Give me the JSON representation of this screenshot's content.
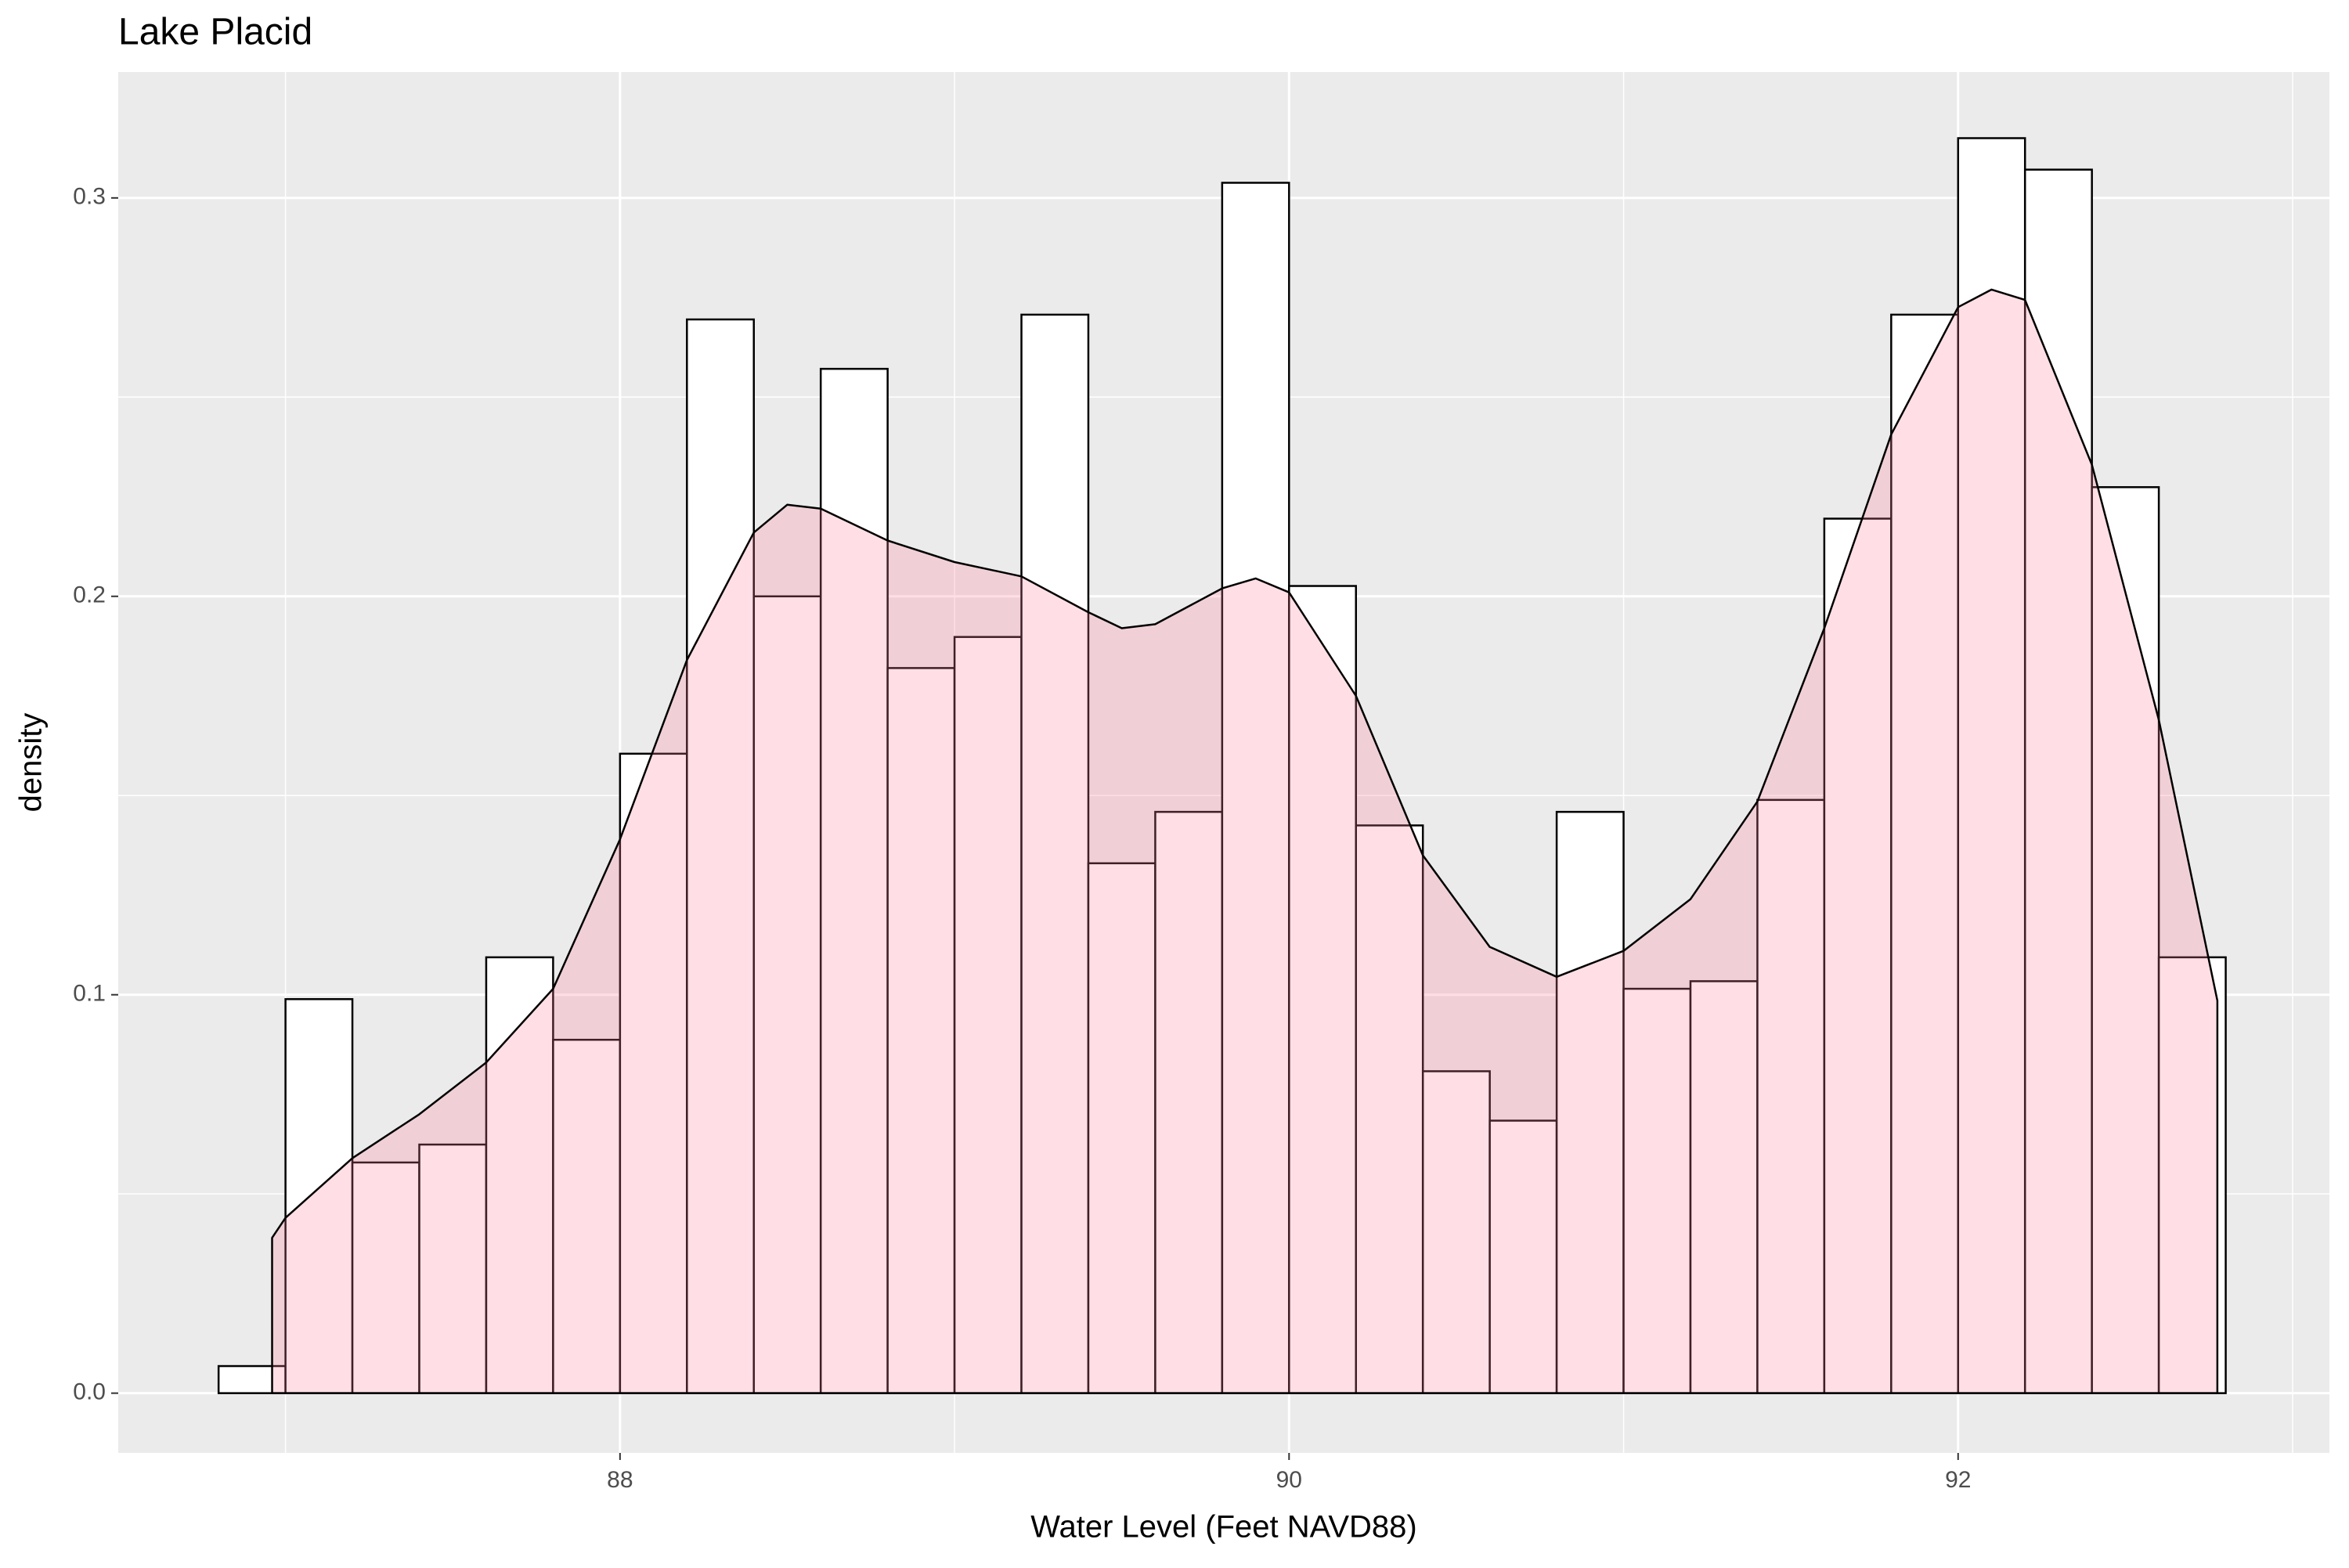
{
  "chart_data": {
    "type": "histogram",
    "title": "Lake Placid",
    "x_label": "Water Level (Feet NAVD88)",
    "y_label": "density",
    "bins": [
      86.8,
      87.0,
      87.2,
      87.4,
      87.6,
      87.8,
      88.0,
      88.2,
      88.4,
      88.6,
      88.8,
      89.0,
      89.2,
      89.4,
      89.6,
      89.8,
      90.0,
      90.2,
      90.4,
      90.6,
      90.8,
      91.0,
      91.2,
      91.4,
      91.6,
      91.8,
      92.0,
      92.2,
      92.4,
      92.6,
      92.8
    ],
    "values": [
      0.0068,
      0.0989,
      0.0579,
      0.0624,
      0.1094,
      0.0887,
      0.1605,
      0.2695,
      0.2,
      0.2571,
      0.182,
      0.1898,
      0.2707,
      0.133,
      0.1459,
      0.3038,
      0.2026,
      0.1425,
      0.0808,
      0.0684,
      0.1459,
      0.1015,
      0.1034,
      0.1489,
      0.2195,
      0.2707,
      0.315,
      0.3071,
      0.2274,
      0.1094
    ],
    "color": "#ffffff",
    "edge_color": "#000000",
    "density": {
      "x": [
        86.96,
        87.0,
        87.2,
        87.4,
        87.6,
        87.8,
        88.0,
        88.2,
        88.4,
        88.5,
        88.6,
        88.8,
        89.0,
        89.2,
        89.4,
        89.5,
        89.6,
        89.8,
        89.9,
        90.0,
        90.2,
        90.4,
        90.6,
        90.8,
        91.0,
        91.2,
        91.4,
        91.6,
        91.8,
        92.0,
        92.1,
        92.2,
        92.4,
        92.6,
        92.775
      ],
      "y": [
        0.039,
        0.044,
        0.059,
        0.07,
        0.083,
        0.1015,
        0.139,
        0.184,
        0.216,
        0.223,
        0.222,
        0.214,
        0.2086,
        0.205,
        0.196,
        0.192,
        0.193,
        0.202,
        0.2045,
        0.201,
        0.175,
        0.135,
        0.112,
        0.1045,
        0.111,
        0.124,
        0.1485,
        0.192,
        0.2406,
        0.2726,
        0.277,
        0.2744,
        0.233,
        0.169,
        0.0985
      ],
      "color": "#ff8096",
      "opacity": 0.25
    },
    "xlim": [
      86.5,
      93.11
    ],
    "ylim": [
      -0.015,
      0.3316
    ],
    "xticks": [
      88,
      90,
      92
    ],
    "yticks": [
      {
        "value": 0,
        "label": "0.0"
      },
      0.1,
      0.2,
      0.3
    ],
    "xminor": [
      87,
      89,
      91,
      93
    ],
    "yminor": [
      0.05,
      0.15,
      0.25
    ],
    "grid": true,
    "panel_color": "#ebebeb"
  }
}
